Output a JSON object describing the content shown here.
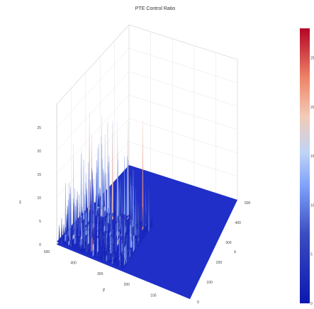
{
  "chart_data": {
    "type": "surface",
    "title": "PTE Control Ratio",
    "x_axis": {
      "label": "x",
      "ticks": [
        0,
        100,
        200,
        300,
        400,
        500
      ],
      "range": [
        0,
        550
      ]
    },
    "y_axis": {
      "label": "y",
      "ticks": [
        100,
        200,
        300,
        400,
        500
      ],
      "range": [
        0,
        550
      ]
    },
    "z_axis": {
      "label": "z",
      "ticks": [
        0,
        5,
        10,
        15,
        20,
        25
      ],
      "range": [
        0,
        30
      ]
    },
    "colorbar": {
      "ticks": [
        0,
        5,
        10,
        15,
        20,
        25
      ],
      "range": [
        0,
        28
      ],
      "colorscale": [
        "#0c18b0",
        "#3b4cc0",
        "#7b9ff9",
        "#c0d4f5",
        "#f2cbb7",
        "#ee8468",
        "#b40426"
      ]
    },
    "surface_summary": {
      "baseline_value": 0,
      "base_color": "#1f2fc7",
      "region_of_spikes": {
        "x": [
          0,
          250
        ],
        "y": [
          250,
          500
        ]
      },
      "spike_range": [
        0,
        25
      ],
      "max_value": 25
    }
  }
}
